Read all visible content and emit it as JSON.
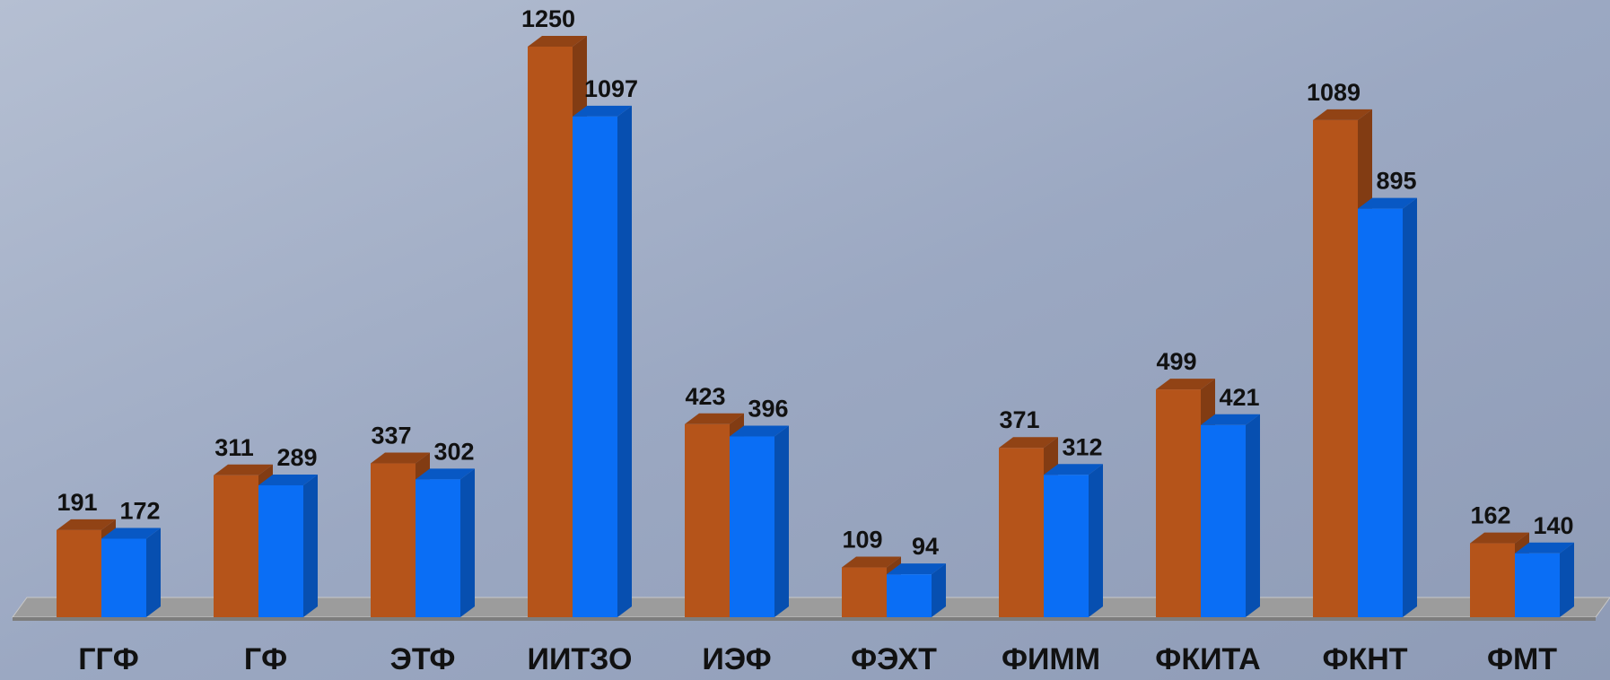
{
  "chart_data": {
    "type": "bar3d",
    "categories": [
      "ГГФ",
      "ГФ",
      "ЭТФ",
      "ИИТЗО",
      "ИЭФ",
      "ФЭХТ",
      "ФИММ",
      "ФКИТА",
      "ФКНТ",
      "ФМТ"
    ],
    "series": [
      {
        "color": "#b5541a",
        "values": [
          191,
          311,
          337,
          1250,
          423,
          109,
          371,
          499,
          1089,
          162
        ]
      },
      {
        "color": "#0a6ef5",
        "values": [
          172,
          289,
          302,
          1097,
          396,
          94,
          312,
          421,
          895,
          140
        ]
      }
    ]
  }
}
